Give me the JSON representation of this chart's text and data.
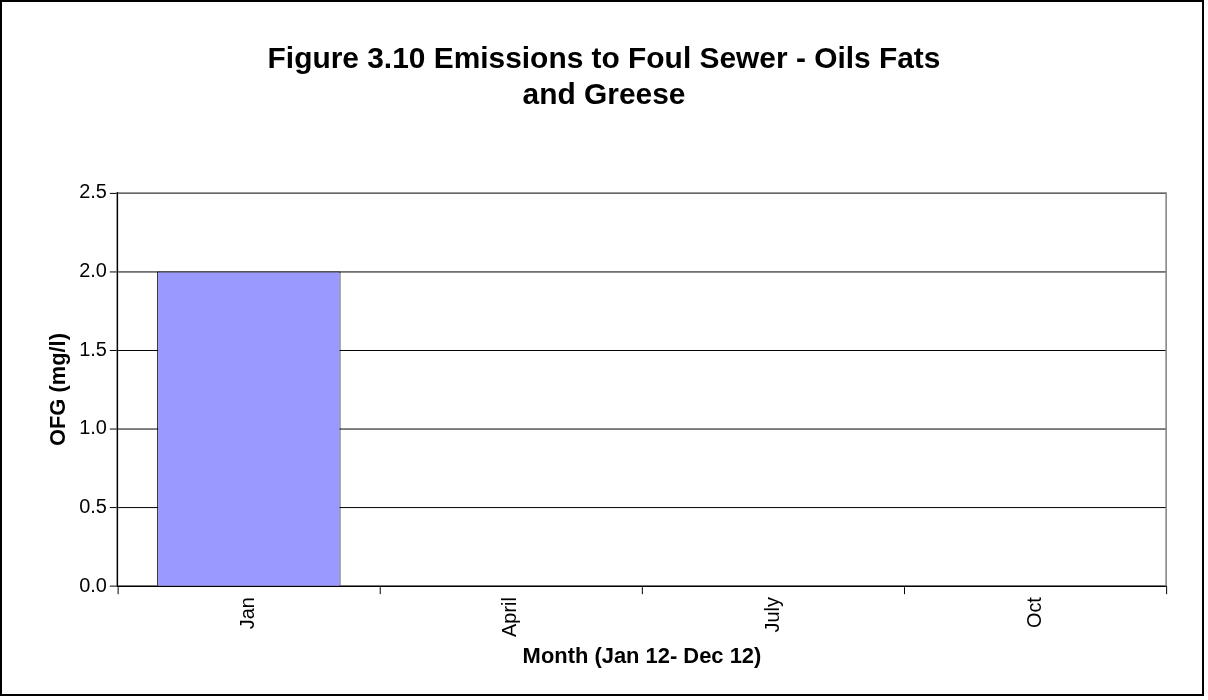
{
  "chart_data": {
    "type": "bar",
    "title": "Figure 3.10 Emissions to Foul Sewer - Oils Fats and Greese",
    "xlabel": "Month (Jan 12- Dec 12)",
    "ylabel": "OFG (mg/l)",
    "categories": [
      "Jan",
      "April",
      "July",
      "Oct"
    ],
    "values": [
      2.0,
      null,
      null,
      null
    ],
    "color": "#9999ff",
    "ylim": [
      0,
      2.5
    ],
    "yticks": [
      {
        "value": 0,
        "label": "0.0"
      },
      {
        "value": 0.5,
        "label": "0.5"
      },
      {
        "value": 1,
        "label": "1.0"
      },
      {
        "value": 1.5,
        "label": "1.5"
      },
      {
        "value": 2,
        "label": "2.0"
      },
      {
        "value": 2.5,
        "label": "2.5"
      }
    ],
    "grid": "y",
    "legend": false
  }
}
